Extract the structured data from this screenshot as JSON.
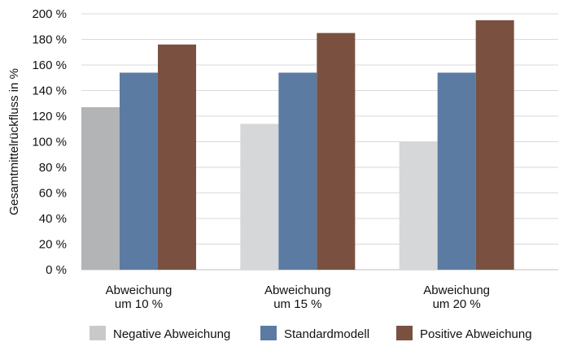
{
  "chart_data": {
    "type": "bar",
    "title": "",
    "xlabel": "",
    "ylabel": "Gesamtmittelrückfluss in %",
    "ylim": [
      0,
      200
    ],
    "yticks": [
      0,
      20,
      40,
      60,
      80,
      100,
      120,
      140,
      160,
      180,
      200
    ],
    "ytick_labels": [
      "0 %",
      "20 %",
      "40 %",
      "60 %",
      "80 %",
      "100 %",
      "120 %",
      "140 %",
      "160 %",
      "180 %",
      "200 %"
    ],
    "grid": true,
    "legend_position": "bottom",
    "categories": [
      [
        "Abweichung",
        "um 10 %"
      ],
      [
        "Abweichung",
        "um 15 %"
      ],
      [
        "Abweichung",
        "um 20 %"
      ]
    ],
    "series": [
      {
        "name": "Negative Abweichung",
        "values": [
          127,
          114,
          100
        ],
        "colors": [
          "#b3b4b6",
          "#d6d7d8",
          "#d6d7d8"
        ]
      },
      {
        "name": "Standardmodell",
        "values": [
          154,
          154,
          154
        ],
        "colors": [
          "#5b7ba3",
          "#5b7ba3",
          "#5b7ba3"
        ]
      },
      {
        "name": "Positive Abweichung",
        "values": [
          176,
          185,
          195
        ],
        "colors": [
          "#7a5140",
          "#7a5140",
          "#7a5140"
        ]
      }
    ],
    "legend_colors": [
      "#c8c9cb",
      "#5b7ba3",
      "#7a5140"
    ],
    "gridline_color": "#d9d9d9",
    "axis_color": "#bfbfbf"
  }
}
